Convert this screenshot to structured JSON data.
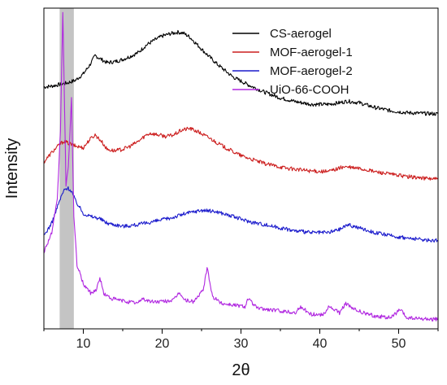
{
  "chart_data": {
    "type": "line",
    "title": "",
    "xlabel": "2θ",
    "ylabel": "Intensity",
    "xlim": [
      5,
      55
    ],
    "ylim": [
      0,
      1
    ],
    "x_ticks": [
      10,
      20,
      30,
      40,
      50
    ],
    "y_ticks_shown": false,
    "grid": false,
    "legend_position": "top-right",
    "highlight_band": {
      "x_start": 7.0,
      "x_end": 8.8,
      "color": "#c4c4c4"
    },
    "series": [
      {
        "name": "CS-aerogel",
        "color": "#000000",
        "x": [
          5,
          6,
          7,
          8,
          9,
          10,
          10.8,
          11.5,
          12.3,
          13,
          14,
          15,
          16,
          17,
          18,
          19,
          20,
          21,
          22,
          22.7,
          23.5,
          24.5,
          25.5,
          27,
          29,
          31,
          33,
          35,
          37,
          39,
          41,
          42.5,
          43.5,
          45,
          47,
          49,
          51,
          53,
          55
        ],
        "values": [
          0.754,
          0.757,
          0.762,
          0.767,
          0.775,
          0.795,
          0.822,
          0.852,
          0.84,
          0.83,
          0.833,
          0.84,
          0.85,
          0.862,
          0.885,
          0.9,
          0.913,
          0.92,
          0.925,
          0.922,
          0.91,
          0.885,
          0.86,
          0.825,
          0.785,
          0.76,
          0.738,
          0.72,
          0.708,
          0.7,
          0.7,
          0.705,
          0.71,
          0.705,
          0.69,
          0.68,
          0.674,
          0.672,
          0.67
        ]
      },
      {
        "name": "MOF-aerogel-1",
        "color": "#cc1f1f",
        "x": [
          5,
          6,
          7,
          7.5,
          8,
          9,
          10,
          10.8,
          11.5,
          12.3,
          13,
          14,
          15,
          16,
          17,
          18,
          18.5,
          19.5,
          20.5,
          21.5,
          22.5,
          23.5,
          24.5,
          26,
          28,
          30,
          33,
          36,
          39,
          41,
          43,
          45,
          47,
          49,
          51,
          53,
          55
        ],
        "values": [
          0.52,
          0.55,
          0.575,
          0.585,
          0.58,
          0.57,
          0.565,
          0.59,
          0.605,
          0.585,
          0.56,
          0.555,
          0.56,
          0.57,
          0.585,
          0.605,
          0.61,
          0.605,
          0.6,
          0.605,
          0.62,
          0.625,
          0.615,
          0.595,
          0.565,
          0.54,
          0.515,
          0.5,
          0.492,
          0.49,
          0.505,
          0.5,
          0.49,
          0.482,
          0.475,
          0.47,
          0.467
        ]
      },
      {
        "name": "MOF-aerogel-2",
        "color": "#1a1acc",
        "x": [
          5,
          6,
          7,
          7.5,
          8,
          8.5,
          9,
          10,
          11,
          12,
          13,
          15,
          17,
          19,
          21,
          23,
          25,
          27,
          29,
          31,
          33,
          35,
          37,
          39,
          41,
          42.5,
          43.5,
          45,
          47,
          49,
          51,
          53,
          55
        ],
        "values": [
          0.29,
          0.33,
          0.4,
          0.43,
          0.44,
          0.43,
          0.4,
          0.36,
          0.35,
          0.345,
          0.33,
          0.32,
          0.325,
          0.335,
          0.345,
          0.36,
          0.37,
          0.365,
          0.35,
          0.335,
          0.325,
          0.315,
          0.305,
          0.3,
          0.3,
          0.31,
          0.325,
          0.315,
          0.3,
          0.29,
          0.283,
          0.278,
          0.275
        ]
      },
      {
        "name": "UiO-66-COOH",
        "color": "#b026e0",
        "x": [
          5,
          6,
          6.7,
          7.1,
          7.4,
          7.8,
          8.1,
          8.5,
          8.8,
          9.2,
          10,
          11,
          11.7,
          12.1,
          12.6,
          13.5,
          14.5,
          15.5,
          17,
          17.4,
          18.5,
          20,
          21.5,
          22.2,
          22.8,
          24,
          25.2,
          25.7,
          26.4,
          27.5,
          29,
          30.5,
          30.9,
          32,
          33.5,
          35.5,
          37,
          37.4,
          39,
          40.5,
          41.1,
          42.5,
          43.3,
          44,
          45.5,
          47,
          49,
          50.2,
          51,
          53,
          55
        ],
        "values": [
          0.24,
          0.3,
          0.4,
          0.62,
          0.99,
          0.45,
          0.5,
          0.72,
          0.35,
          0.2,
          0.14,
          0.11,
          0.125,
          0.16,
          0.11,
          0.095,
          0.09,
          0.085,
          0.08,
          0.095,
          0.085,
          0.085,
          0.09,
          0.115,
          0.09,
          0.085,
          0.12,
          0.19,
          0.1,
          0.08,
          0.075,
          0.07,
          0.095,
          0.065,
          0.06,
          0.055,
          0.05,
          0.07,
          0.045,
          0.045,
          0.07,
          0.05,
          0.08,
          0.065,
          0.05,
          0.04,
          0.035,
          0.06,
          0.035,
          0.03,
          0.03
        ]
      }
    ]
  }
}
